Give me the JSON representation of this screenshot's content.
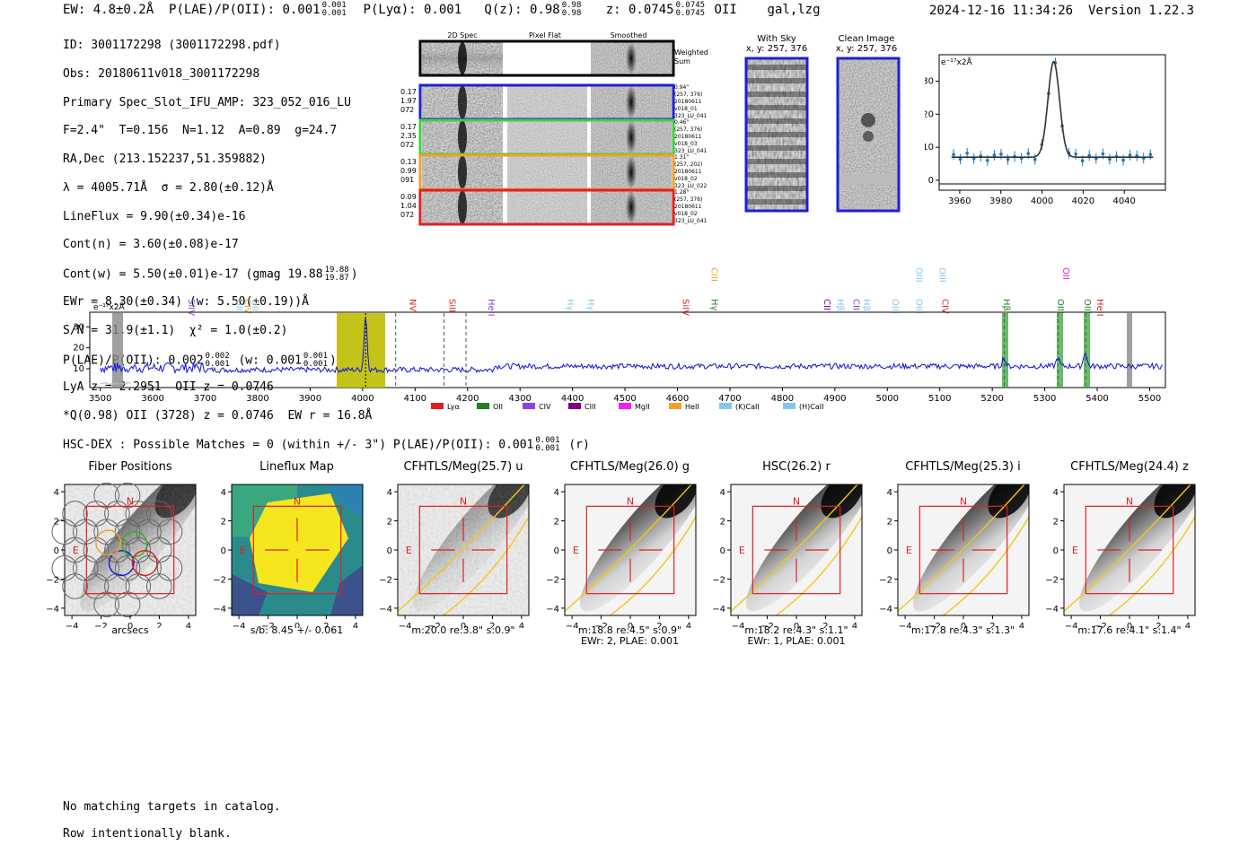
{
  "header": {
    "ew_label": "EW: 4.8±0.2Å",
    "plae_label": "P(LAE)/P(OII): 0.001",
    "plae_hi": "0.001",
    "plae_lo": "0.001",
    "plya": "P(Lyα): 0.001",
    "qz_label": "Q(z): 0.98",
    "qz_hi": "0.98",
    "qz_lo": "0.98",
    "z_label": "z: 0.0745",
    "z_hi": "0.0745",
    "z_lo": "0.0745",
    "z_line": "OII",
    "flags": "gal,lzg",
    "timestamp": "2024-12-16 11:34:26",
    "version": "Version 1.22.3"
  },
  "info": {
    "id": "ID: 3001172298 (3001172298.pdf)",
    "obs": "Obs: 20180611v018_3001172298",
    "primary": "Primary Spec_Slot_IFU_AMP: 323_052_016_LU",
    "fwhm": "F=2.4\"  T=0.156  N=1.12  A=0.89  g=24.7",
    "radec": "RA,Dec (213.152237,51.359882)",
    "lambda": "λ = 4005.71Å  σ = 2.80(±0.12)Å",
    "lineflux": "LineFlux = 9.90(±0.34)e-16",
    "contn": "Cont(n) = 3.60(±0.08)e-17",
    "contw": "Cont(w) = 5.50(±0.01)e-17 (gmag 19.88",
    "gmag_hi": "19.88",
    "gmag_lo": "19.87",
    "ewr": "EWr = 8.30(±0.34) (w: 5.50(±0.19))Å",
    "sn": "S/N = 31.9(±1.1)  χ² = 1.0(±0.2)",
    "plae2": "P(LAE)/P(OII): 0.002",
    "plae2_hi": "0.002",
    "plae2_lo": "0.001",
    "plae2_w": "(w: 0.001",
    "plae2_w_hi": "0.001",
    "plae2_w_lo": "0.001",
    "lya_z": "LyA z = 2.2951  OII z = 0.0746",
    "qline": "*Q(0.98) OII (3728) z = 0.0746  EW r = 16.8Å"
  },
  "spec2d": {
    "col_2d": "2D Spec",
    "col_flat": "Pixel Flat",
    "col_smooth": "Smoothed",
    "weighted": "Weighted",
    "sum": "Sum",
    "rows": [
      {
        "color": "#1f1fd6",
        "left": [
          "0.17",
          "1.97",
          "072"
        ],
        "right": [
          "0.94\"",
          "(257, 376)",
          "20180611",
          "v018_01",
          "323_LU_041"
        ]
      },
      {
        "color": "#3ed23e",
        "left": [
          "0.17",
          "2.35",
          "072"
        ],
        "right": [
          "0.46\"",
          "(257, 376)",
          "20180611",
          "v018_03",
          "323_LU_041"
        ]
      },
      {
        "color": "#f0a030",
        "left": [
          "0.13",
          "0.99",
          "091"
        ],
        "right": [
          "1.31\"",
          "(257, 202)",
          "20180611",
          "v018_02",
          "323_LU_022"
        ]
      },
      {
        "color": "#e02020",
        "left": [
          "0.09",
          "1.04",
          "072"
        ],
        "right": [
          "1.28\"",
          "(257, 376)",
          "20180611",
          "v018_02",
          "323_LU_041"
        ]
      }
    ]
  },
  "sky": {
    "with_sky": "With Sky",
    "with_sky_xy": "x, y: 257, 376",
    "clean": "Clean Image",
    "clean_xy": "x, y: 257, 376"
  },
  "zoom_plot": {
    "unit": "e⁻¹⁷x2Å",
    "xticks": [
      "3960",
      "3980",
      "4000",
      "4020",
      "4040"
    ],
    "yticks": [
      "0",
      "10",
      "20",
      "30"
    ]
  },
  "spectrum": {
    "unit": "e⁻¹⁷x2Å",
    "xticks": [
      "3500",
      "3600",
      "3700",
      "3800",
      "3900",
      "4000",
      "4100",
      "4200",
      "4300",
      "4400",
      "4500",
      "4600",
      "4700",
      "4800",
      "4900",
      "5000",
      "5100",
      "5200",
      "5300",
      "5400",
      "5500"
    ],
    "yticks": [
      "10",
      "20",
      "30"
    ],
    "line_labels": [
      {
        "text": "SiIV",
        "x": 3668,
        "color": "#9040d0",
        "row": 0
      },
      {
        "text": "OII",
        "x": 3760,
        "color": "#80c8ec",
        "row": 0
      },
      {
        "text": "CIV",
        "x": 3775,
        "color": "#f0a030",
        "row": 0
      },
      {
        "text": "OII",
        "x": 3790,
        "color": "#80c8ec",
        "row": 0
      },
      {
        "text": "NV",
        "x": 4090,
        "color": "#e02020",
        "row": 0
      },
      {
        "text": "SiII",
        "x": 4165,
        "color": "#e02020",
        "row": 0
      },
      {
        "text": "HeII",
        "x": 4240,
        "color": "#9040d0",
        "row": 0
      },
      {
        "text": "Hγ",
        "x": 4390,
        "color": "#80c8ec",
        "row": 0
      },
      {
        "text": "Hγ",
        "x": 4430,
        "color": "#80c8ec",
        "row": 0
      },
      {
        "text": "SiIV",
        "x": 4610,
        "color": "#e02020",
        "row": 0
      },
      {
        "text": "Hγ",
        "x": 4665,
        "color": "#208020",
        "row": 0
      },
      {
        "text": "CIII",
        "x": 4665,
        "color": "#f0a030",
        "row": 1
      },
      {
        "text": "CII",
        "x": 4880,
        "color": "#800080",
        "row": 0
      },
      {
        "text": "Hβ",
        "x": 4905,
        "color": "#80c8ec",
        "row": 0
      },
      {
        "text": "CII",
        "x": 4935,
        "color": "#9040d0",
        "row": 0
      },
      {
        "text": "Hβ",
        "x": 4955,
        "color": "#80c8ec",
        "row": 0
      },
      {
        "text": "OIII",
        "x": 5010,
        "color": "#80c8ec",
        "row": 0
      },
      {
        "text": "OIII",
        "x": 5055,
        "color": "#80c8ec",
        "row": 0
      },
      {
        "text": "OIII",
        "x": 5055,
        "color": "#80c8ec",
        "row": 1
      },
      {
        "text": "OIII",
        "x": 5100,
        "color": "#80c8ec",
        "row": 1
      },
      {
        "text": "CIV",
        "x": 5105,
        "color": "#e02020",
        "row": 0
      },
      {
        "text": "Hβ",
        "x": 5222,
        "color": "#208020",
        "row": 0
      },
      {
        "text": "OIII",
        "x": 5325,
        "color": "#208020",
        "row": 0
      },
      {
        "text": "OII",
        "x": 5335,
        "color": "#e020e0",
        "row": 1
      },
      {
        "text": "OIII",
        "x": 5376,
        "color": "#208020",
        "row": 0
      },
      {
        "text": "HeII",
        "x": 5400,
        "color": "#e02020",
        "row": 0
      }
    ],
    "legend": [
      {
        "label": "Lyα",
        "color": "#e02020"
      },
      {
        "label": "OII",
        "color": "#208020"
      },
      {
        "label": "CIV",
        "color": "#9040e0"
      },
      {
        "label": "CIII",
        "color": "#800080"
      },
      {
        "label": "MgII",
        "color": "#f020f0"
      },
      {
        "label": "HeII",
        "color": "#f0a030"
      },
      {
        "label": "(K)CaII",
        "color": "#80c8ec"
      },
      {
        "label": "(H)CaII",
        "color": "#80c8ec"
      }
    ]
  },
  "hsc": {
    "text": "HSC-DEX : Possible Matches = 0 (within +/- 3\")  P(LAE)/P(OII): 0.001",
    "hi": "0.001",
    "lo": "0.001",
    "suffix": "(r)"
  },
  "cutouts": [
    {
      "title": "Fiber Positions",
      "caption1": "arcsecs",
      "caption2": "",
      "kind": "fiber"
    },
    {
      "title": "Lineflux Map",
      "caption1": "s/b: 8.45 +/- 0.061",
      "caption2": "",
      "kind": "flux"
    },
    {
      "title": "CFHTLS/Meg(25.7) u",
      "caption1": "m:20.0  re:3.8\"  s:0.9\"",
      "caption2": "",
      "kind": "u"
    },
    {
      "title": "CFHTLS/Meg(26.0) g",
      "caption1": "m:18.8  re:4.5\"  s:0.9\"",
      "caption2": "EWr: 2, PLAE: 0.001",
      "kind": "img"
    },
    {
      "title": "HSC(26.2) r",
      "caption1": "m:18.2  re:4.3\"  s:1.1\"",
      "caption2": "EWr: 1, PLAE: 0.001",
      "kind": "img"
    },
    {
      "title": "CFHTLS/Meg(25.3) i",
      "caption1": "m:17.8  re:4.3\"  s:1.3\"",
      "caption2": "",
      "kind": "img"
    },
    {
      "title": "CFHTLS/Meg(24.4) z",
      "caption1": "m:17.6  re:4.1\"  s:1.4\"",
      "caption2": "",
      "kind": "img"
    }
  ],
  "cutout_axis": {
    "xticks": [
      "−4",
      "−2",
      "0",
      "2",
      "4"
    ],
    "yticks": [
      "4",
      "2",
      "0",
      "−2",
      "−4"
    ],
    "north": "N",
    "east": "E"
  },
  "footer": {
    "line1": "No matching targets in catalog.",
    "line2": "Row intentionally blank."
  }
}
